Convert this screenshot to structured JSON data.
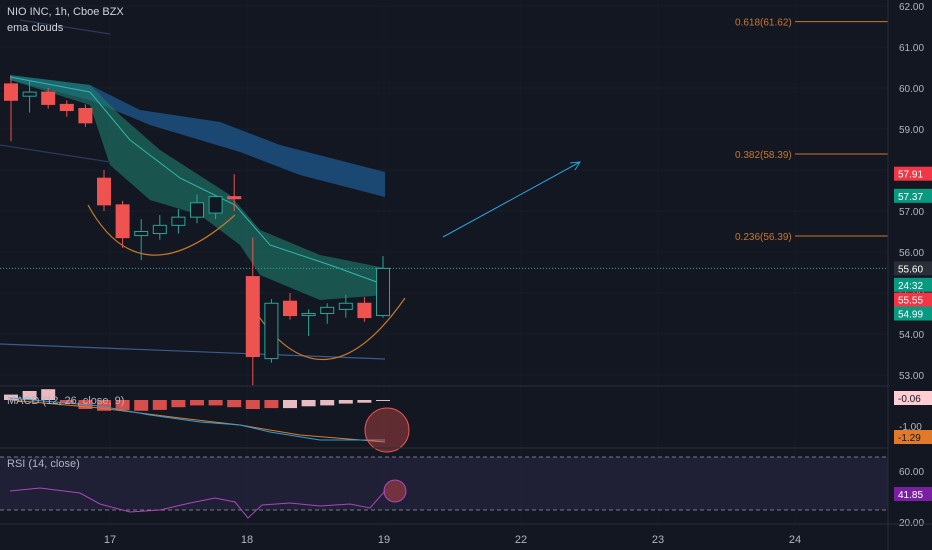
{
  "header": {
    "symbol_line": "NIO INC, 1h, Cboe BZX",
    "indicator": "ema clouds"
  },
  "macd_label": "MACD (12, 26, close, 9)",
  "rsi_label": "RSI (14, close)",
  "colors": {
    "bg": "#131722",
    "up": "#26a69a",
    "down": "#ef5350",
    "grid": "#2a2e39",
    "cloud_fast": "#1f7d6e",
    "cloud_slow": "#1d5a8e",
    "fib": "#8a5a2e"
  },
  "chart_data": {
    "type": "candlestick",
    "price_axis": {
      "ticks": [
        "62.00",
        "61.00",
        "60.00",
        "59.00",
        "58.00",
        "57.00",
        "56.00",
        "55.00",
        "54.00",
        "53.00"
      ]
    },
    "time_axis": {
      "ticks": [
        "17",
        "18",
        "19",
        "22",
        "23",
        "24"
      ]
    },
    "fib_levels": [
      {
        "label": "0.618(61.62)",
        "price": 61.62
      },
      {
        "label": "0.382(58.39)",
        "price": 58.39
      },
      {
        "label": "0.236(56.39)",
        "price": 56.39
      }
    ],
    "price_tags": [
      {
        "text": "57.91",
        "price": 57.91,
        "kind": "down"
      },
      {
        "text": "57.37",
        "price": 57.37,
        "kind": "up"
      },
      {
        "text": "55.60",
        "price": 55.6,
        "kind": "neutral"
      },
      {
        "text": "24:32",
        "price": 55.2,
        "kind": "up"
      },
      {
        "text": "55.55",
        "price": 54.84,
        "kind": "down"
      },
      {
        "text": "54.99",
        "price": 54.5,
        "kind": "up"
      }
    ],
    "last_price": 55.6,
    "candles": [
      {
        "o": 60.1,
        "h": 60.3,
        "l": 58.7,
        "c": 59.7
      },
      {
        "o": 59.8,
        "h": 60.2,
        "l": 59.4,
        "c": 59.9
      },
      {
        "o": 59.9,
        "h": 60.0,
        "l": 59.5,
        "c": 59.6
      },
      {
        "o": 59.6,
        "h": 59.7,
        "l": 59.3,
        "c": 59.45
      },
      {
        "o": 59.5,
        "h": 59.6,
        "l": 59.05,
        "c": 59.15
      },
      {
        "o": 57.8,
        "h": 58.0,
        "l": 57.0,
        "c": 57.15
      },
      {
        "o": 57.15,
        "h": 57.25,
        "l": 56.1,
        "c": 56.35
      },
      {
        "o": 56.4,
        "h": 56.8,
        "l": 55.8,
        "c": 56.5
      },
      {
        "o": 56.45,
        "h": 56.9,
        "l": 56.3,
        "c": 56.65
      },
      {
        "o": 56.65,
        "h": 57.05,
        "l": 56.45,
        "c": 56.85
      },
      {
        "o": 56.85,
        "h": 57.4,
        "l": 56.7,
        "c": 57.2
      },
      {
        "o": 56.95,
        "h": 57.35,
        "l": 56.8,
        "c": 57.35
      },
      {
        "o": 57.35,
        "h": 57.9,
        "l": 57.0,
        "c": 57.3
      },
      {
        "o": 55.4,
        "h": 56.35,
        "l": 52.75,
        "c": 53.45
      },
      {
        "o": 53.4,
        "h": 54.85,
        "l": 53.3,
        "c": 54.75
      },
      {
        "o": 54.8,
        "h": 55.0,
        "l": 54.35,
        "c": 54.45
      },
      {
        "o": 54.45,
        "h": 54.6,
        "l": 53.95,
        "c": 54.5
      },
      {
        "o": 54.5,
        "h": 54.75,
        "l": 54.25,
        "c": 54.65
      },
      {
        "o": 54.6,
        "h": 54.95,
        "l": 54.4,
        "c": 54.75
      },
      {
        "o": 54.75,
        "h": 54.9,
        "l": 54.3,
        "c": 54.4
      },
      {
        "o": 54.45,
        "h": 55.9,
        "l": 54.4,
        "c": 55.6
      }
    ],
    "macd": {
      "label_value": "-0.06",
      "signal_value": "-1.29",
      "histogram": [
        0.3,
        0.5,
        0.6,
        -0.2,
        -0.5,
        -0.6,
        -0.55,
        -0.6,
        -0.55,
        -0.4,
        -0.3,
        -0.3,
        -0.4,
        -0.5,
        -0.45,
        -0.45,
        -0.35,
        -0.3,
        -0.2,
        -0.15,
        -0.05
      ]
    },
    "rsi": {
      "label_value": "41.85",
      "ticks": [
        "60.00",
        "20.00"
      ]
    },
    "annotations": [
      "arrow-up-right",
      "cup-curve-left",
      "cup-curve-right",
      "highlight-circle-macd",
      "highlight-circle-rsi"
    ]
  }
}
